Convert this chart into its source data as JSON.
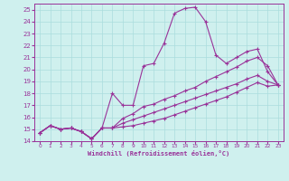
{
  "xlabel": "Windchill (Refroidissement éolien,°C)",
  "ylabel": "",
  "xlim": [
    -0.5,
    23.5
  ],
  "ylim": [
    14,
    25.5
  ],
  "xticks": [
    0,
    1,
    2,
    3,
    4,
    5,
    6,
    7,
    8,
    9,
    10,
    11,
    12,
    13,
    14,
    15,
    16,
    17,
    18,
    19,
    20,
    21,
    22,
    23
  ],
  "yticks": [
    14,
    15,
    16,
    17,
    18,
    19,
    20,
    21,
    22,
    23,
    24,
    25
  ],
  "bg_color": "#cff0ee",
  "line_color": "#993399",
  "grid_color": "#aadddd",
  "lines": [
    {
      "x": [
        0,
        1,
        2,
        3,
        4,
        5,
        6,
        7,
        8,
        9,
        10,
        11,
        12,
        13,
        14,
        15,
        16,
        17,
        18,
        19,
        20,
        21,
        22,
        23
      ],
      "y": [
        14.7,
        15.3,
        15.0,
        15.1,
        14.8,
        14.2,
        15.1,
        18.0,
        17.0,
        17.0,
        20.3,
        20.5,
        22.2,
        24.7,
        25.1,
        25.2,
        24.0,
        21.2,
        20.5,
        21.0,
        21.5,
        21.7,
        19.8,
        18.7
      ]
    },
    {
      "x": [
        0,
        1,
        2,
        3,
        4,
        5,
        6,
        7,
        8,
        9,
        10,
        11,
        12,
        13,
        14,
        15,
        16,
        17,
        18,
        19,
        20,
        21,
        22,
        23
      ],
      "y": [
        14.7,
        15.3,
        15.0,
        15.1,
        14.8,
        14.2,
        15.1,
        15.1,
        15.9,
        16.3,
        16.9,
        17.1,
        17.5,
        17.8,
        18.2,
        18.5,
        19.0,
        19.4,
        19.8,
        20.2,
        20.7,
        21.0,
        20.3,
        18.7
      ]
    },
    {
      "x": [
        0,
        1,
        2,
        3,
        4,
        5,
        6,
        7,
        8,
        9,
        10,
        11,
        12,
        13,
        14,
        15,
        16,
        17,
        18,
        19,
        20,
        21,
        22,
        23
      ],
      "y": [
        14.7,
        15.3,
        15.0,
        15.1,
        14.8,
        14.2,
        15.1,
        15.1,
        15.5,
        15.8,
        16.1,
        16.4,
        16.7,
        17.0,
        17.3,
        17.6,
        17.9,
        18.2,
        18.5,
        18.8,
        19.2,
        19.5,
        19.0,
        18.7
      ]
    },
    {
      "x": [
        0,
        1,
        2,
        3,
        4,
        5,
        6,
        7,
        8,
        9,
        10,
        11,
        12,
        13,
        14,
        15,
        16,
        17,
        18,
        19,
        20,
        21,
        22,
        23
      ],
      "y": [
        14.7,
        15.3,
        15.0,
        15.1,
        14.8,
        14.2,
        15.1,
        15.1,
        15.2,
        15.3,
        15.5,
        15.7,
        15.9,
        16.2,
        16.5,
        16.8,
        17.1,
        17.4,
        17.7,
        18.1,
        18.5,
        18.9,
        18.6,
        18.7
      ]
    }
  ]
}
